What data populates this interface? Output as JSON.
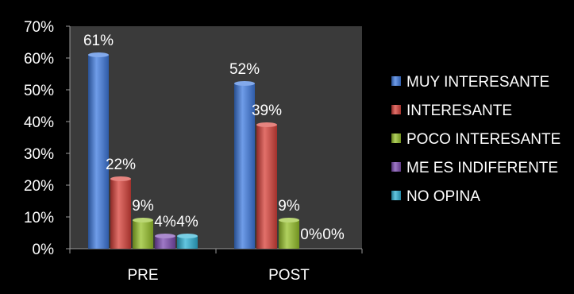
{
  "chart_data": {
    "type": "bar",
    "categories": [
      "PRE",
      "POST"
    ],
    "series": [
      {
        "name": "MUY INTERESANTE",
        "values": [
          61,
          52
        ],
        "labels": [
          "61%",
          "52%"
        ],
        "color": "#3f7be0"
      },
      {
        "name": "INTERESANTE",
        "values": [
          22,
          39
        ],
        "labels": [
          "22%",
          "39%"
        ],
        "color": "#d8413a"
      },
      {
        "name": "POCO INTERESANTE",
        "values": [
          9,
          9
        ],
        "labels": [
          "9%",
          "9%"
        ],
        "color": "#97c22a"
      },
      {
        "name": "ME ES INDIFERENTE",
        "values": [
          4,
          0
        ],
        "labels": [
          "4%",
          "0%"
        ],
        "color": "#7e4cb3"
      },
      {
        "name": "NO OPINA",
        "values": [
          4,
          0
        ],
        "labels": [
          "4%",
          "0%"
        ],
        "color": "#2fb3d6"
      }
    ],
    "y_ticks": [
      "0%",
      "10%",
      "20%",
      "30%",
      "40%",
      "50%",
      "60%",
      "70%"
    ],
    "ylim": [
      0,
      70
    ],
    "legend_position": "right",
    "plot_background": "#3a3a3a",
    "background": "#000000"
  }
}
